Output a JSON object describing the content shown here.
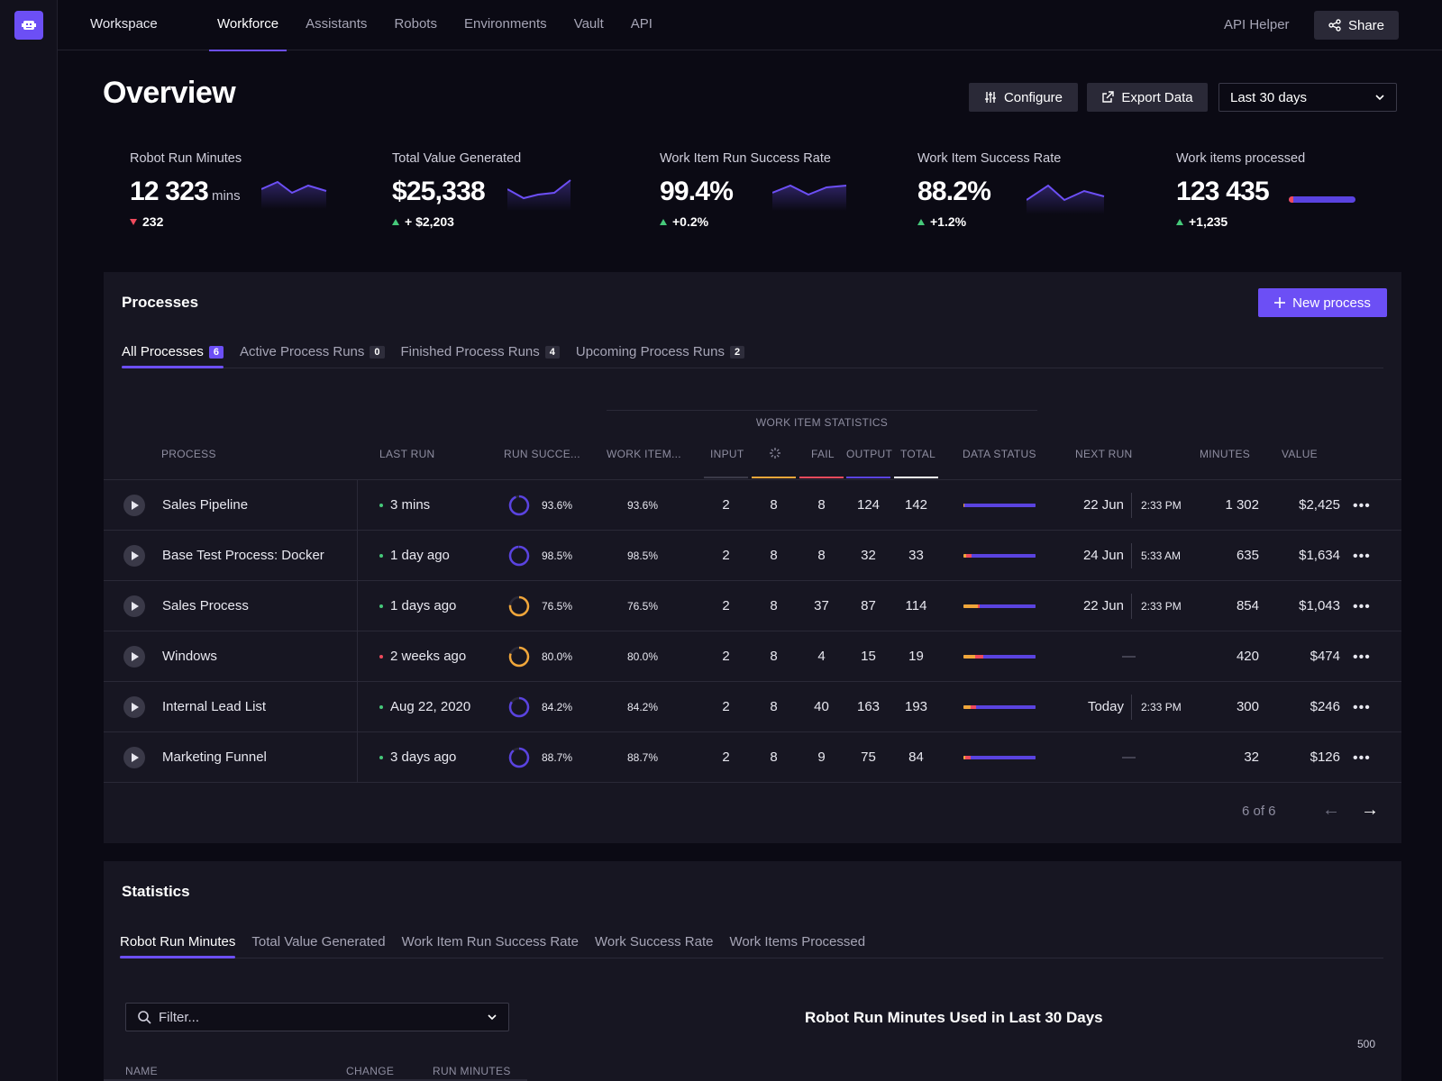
{
  "topbar": {
    "workspace": "Workspace",
    "nav": [
      "Workforce",
      "Assistants",
      "Robots",
      "Environments",
      "Vault",
      "API"
    ],
    "api_helper": "API Helper",
    "share": "Share"
  },
  "header": {
    "title": "Overview",
    "configure": "Configure",
    "export": "Export Data",
    "range": "Last 30 days"
  },
  "kpis": [
    {
      "label": "Robot Run Minutes",
      "value": "12 323",
      "unit": "mins",
      "delta": "232",
      "direction": "down"
    },
    {
      "label": "Total Value Generated",
      "value": "$25,338",
      "unit": "",
      "delta": "+ $2,203",
      "direction": "up"
    },
    {
      "label": "Work Item Run Success Rate",
      "value": "99.4%",
      "unit": "",
      "delta": "+0.2%",
      "direction": "up"
    },
    {
      "label": "Work Item Success Rate",
      "value": "88.2%",
      "unit": "",
      "delta": "+1.2%",
      "direction": "up"
    },
    {
      "label": "Work items processed",
      "value": "123 435",
      "unit": "",
      "delta": "+1,235",
      "direction": "up"
    }
  ],
  "processes": {
    "title": "Processes",
    "new_button": "New process",
    "tabs": [
      {
        "label": "All Processes",
        "count": "6"
      },
      {
        "label": "Active Process Runs",
        "count": "0"
      },
      {
        "label": "Finished Process Runs",
        "count": "4"
      },
      {
        "label": "Upcoming Process Runs",
        "count": "2"
      }
    ],
    "group_header": "WORK ITEM STATISTICS",
    "columns": [
      "PROCESS",
      "LAST RUN",
      "RUN SUCCE...",
      "WORK ITEM...",
      "INPUT",
      "FAIL",
      "OUTPUT",
      "TOTAL",
      "DATA STATUS",
      "NEXT RUN",
      "MINUTES",
      "VALUE"
    ],
    "rows": [
      {
        "name": "Sales Pipeline",
        "last_run": "3 mins",
        "last_status": "ok",
        "run_success": "93.6%",
        "work_item": "93.6%",
        "input": "2",
        "progress": "8",
        "fail": "8",
        "output": "124",
        "total": "142",
        "next_date": "22 Jun",
        "next_time": "2:33 PM",
        "minutes": "1 302",
        "value": "$2,425"
      },
      {
        "name": "Base Test Process: Docker",
        "last_run": "1 day ago",
        "last_status": "ok",
        "run_success": "98.5%",
        "work_item": "98.5%",
        "input": "2",
        "progress": "8",
        "fail": "8",
        "output": "32",
        "total": "33",
        "next_date": "24 Jun",
        "next_time": "5:33 AM",
        "minutes": "635",
        "value": "$1,634"
      },
      {
        "name": "Sales Process",
        "last_run": "1 days ago",
        "last_status": "ok",
        "run_success": "76.5%",
        "work_item": "76.5%",
        "input": "2",
        "progress": "8",
        "fail": "37",
        "output": "87",
        "total": "114",
        "next_date": "22 Jun",
        "next_time": "2:33 PM",
        "minutes": "854",
        "value": "$1,043"
      },
      {
        "name": "Windows",
        "last_run": "2 weeks ago",
        "last_status": "error",
        "run_success": "80.0%",
        "work_item": "80.0%",
        "input": "2",
        "progress": "8",
        "fail": "4",
        "output": "15",
        "total": "19",
        "next_date": "",
        "next_time": "",
        "next_none": "—",
        "minutes": "420",
        "value": "$474"
      },
      {
        "name": "Internal Lead List",
        "last_run": "Aug 22, 2020",
        "last_status": "ok",
        "run_success": "84.2%",
        "work_item": "84.2%",
        "input": "2",
        "progress": "8",
        "fail": "40",
        "output": "163",
        "total": "193",
        "next_date": "Today",
        "next_time": "2:33 PM",
        "minutes": "300",
        "value": "$246"
      },
      {
        "name": "Marketing Funnel",
        "last_run": "3 days ago",
        "last_status": "ok",
        "run_success": "88.7%",
        "work_item": "88.7%",
        "input": "2",
        "progress": "8",
        "fail": "9",
        "output": "75",
        "total": "84",
        "next_date": "",
        "next_time": "",
        "next_none": "—",
        "minutes": "32",
        "value": "$126"
      }
    ],
    "pager": "6 of 6"
  },
  "statistics": {
    "title": "Statistics",
    "tabs": [
      "Robot Run Minutes",
      "Total Value Generated",
      "Work Item Run Success Rate",
      "Work Success Rate",
      "Work Items Processed"
    ],
    "filter_placeholder": "Filter...",
    "columns": [
      "NAME",
      "CHANGE",
      "RUN MINUTES"
    ],
    "chart_title": "Robot Run Minutes Used in Last 30 Days",
    "chart_tick": "500"
  },
  "colors": {
    "accent": "#6c4ff5",
    "ok": "#46c97a",
    "error": "#ef4a5c",
    "warning": "#f0a63a",
    "output": "#5a43e0"
  }
}
